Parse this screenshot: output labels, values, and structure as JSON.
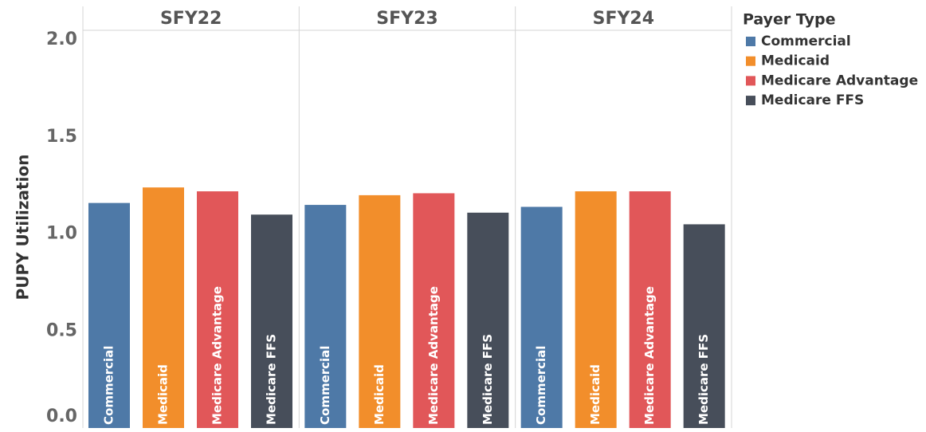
{
  "chart_data": {
    "type": "bar",
    "y_axis_label": "PUPY Utilization",
    "legend_title": "Payer Type",
    "categories": [
      "SFY22",
      "SFY23",
      "SFY24"
    ],
    "series": [
      {
        "name": "Commercial",
        "color": "#4e79a7",
        "values": [
          1.16,
          1.15,
          1.14
        ]
      },
      {
        "name": "Medicaid",
        "color": "#f28e2b",
        "values": [
          1.24,
          1.2,
          1.22
        ]
      },
      {
        "name": "Medicare Advantage",
        "color": "#e15759",
        "values": [
          1.22,
          1.21,
          1.22
        ]
      },
      {
        "name": "Medicare FFS",
        "color": "#474e5a",
        "values": [
          1.1,
          1.11,
          1.05
        ]
      }
    ],
    "ylim": [
      0,
      2.05
    ],
    "yticks": [
      {
        "value": 0,
        "label": "0.0"
      },
      0.5,
      {
        "value": 1,
        "label": "1.0"
      },
      1.5,
      {
        "value": 2,
        "label": "2.0"
      }
    ],
    "grid": false,
    "legend": "right"
  }
}
